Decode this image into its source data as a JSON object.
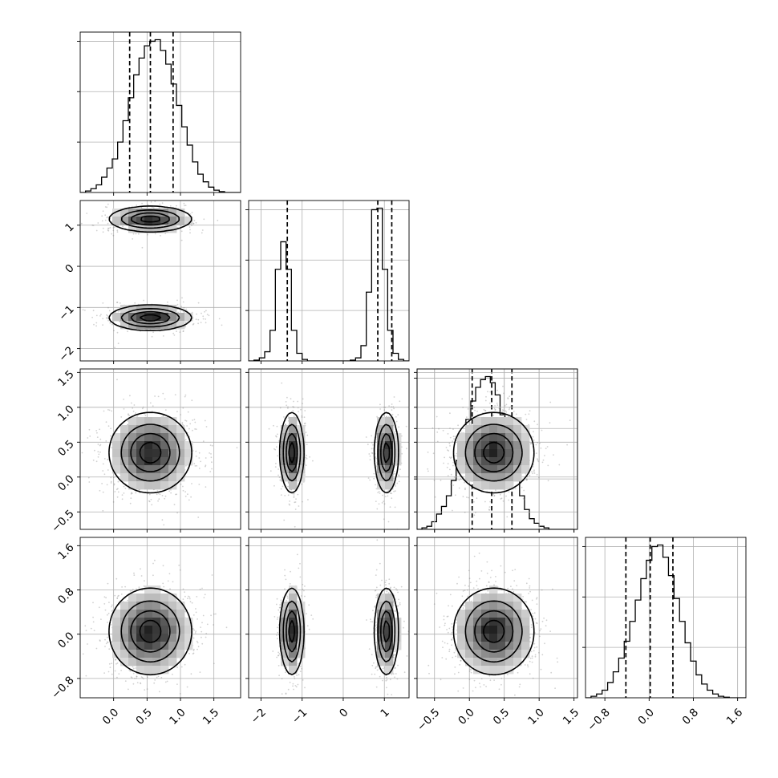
{
  "chart_data": {
    "type": "corner",
    "title": "",
    "parameters": [
      {
        "xlim": [
          -0.5,
          1.9
        ],
        "xticks": [
          0.0,
          0.5,
          1.0,
          1.5
        ],
        "xticklabels": [
          "0.0",
          "0.5",
          "1.0",
          "1.5"
        ],
        "hist": {
          "edges": [
            -0.5,
            -0.42,
            -0.34,
            -0.26,
            -0.18,
            -0.1,
            -0.02,
            0.06,
            0.14,
            0.22,
            0.3,
            0.38,
            0.46,
            0.54,
            0.62,
            0.7,
            0.78,
            0.86,
            0.94,
            1.02,
            1.1,
            1.18,
            1.26,
            1.34,
            1.42,
            1.5,
            1.58,
            1.66,
            1.74,
            1.82,
            1.9
          ],
          "counts": [
            0,
            0.01,
            0.025,
            0.05,
            0.1,
            0.16,
            0.22,
            0.33,
            0.47,
            0.62,
            0.77,
            0.88,
            0.96,
            0.99,
            1.0,
            0.93,
            0.84,
            0.71,
            0.57,
            0.43,
            0.31,
            0.2,
            0.12,
            0.07,
            0.035,
            0.015,
            0.006,
            0,
            0,
            0
          ]
        },
        "quantiles": [
          0.24,
          0.55,
          0.89
        ]
      },
      {
        "xlim": [
          -2.3,
          1.6
        ],
        "xticks": [
          -2,
          -1,
          0,
          1
        ],
        "xticklabels": [
          "−2",
          "−1",
          "0",
          "1"
        ],
        "yticks": [
          -2,
          -1,
          0,
          1
        ],
        "yticklabels": [
          "−2",
          "−1",
          "0",
          "1"
        ],
        "hist": {
          "edges": [
            -2.3,
            -2.17,
            -2.04,
            -1.91,
            -1.78,
            -1.65,
            -1.52,
            -1.39,
            -1.26,
            -1.13,
            -1.0,
            -0.87,
            -0.74,
            -0.61,
            -0.48,
            -0.35,
            -0.22,
            -0.09,
            0.04,
            0.17,
            0.3,
            0.43,
            0.56,
            0.69,
            0.82,
            0.95,
            1.08,
            1.21,
            1.34,
            1.47,
            1.6
          ],
          "counts": [
            0,
            0.005,
            0.02,
            0.06,
            0.2,
            0.6,
            0.78,
            0.6,
            0.2,
            0.05,
            0.01,
            0,
            0,
            0,
            0,
            0,
            0,
            0,
            0,
            0.005,
            0.02,
            0.1,
            0.45,
            0.99,
            1.0,
            0.6,
            0.2,
            0.05,
            0.01,
            0
          ]
        },
        "quantiles": [
          -1.36,
          0.84,
          1.18
        ]
      },
      {
        "xlim": [
          -0.75,
          1.55
        ],
        "xticks": [
          -0.5,
          0.0,
          0.5,
          1.0,
          1.5
        ],
        "xticklabels": [
          "−0.5",
          "0.0",
          "0.5",
          "1.0",
          "1.5"
        ],
        "yticks": [
          -0.5,
          0.0,
          0.5,
          1.0,
          1.5
        ],
        "yticklabels": [
          "−0.5",
          "0.0",
          "0.5",
          "1.0",
          "1.5"
        ],
        "hist": {
          "edges": [
            -0.75,
            -0.68,
            -0.61,
            -0.54,
            -0.47,
            -0.4,
            -0.33,
            -0.26,
            -0.19,
            -0.12,
            -0.05,
            0.02,
            0.09,
            0.16,
            0.23,
            0.3,
            0.37,
            0.44,
            0.51,
            0.58,
            0.65,
            0.72,
            0.79,
            0.86,
            0.93,
            1.0,
            1.07,
            1.14,
            1.21,
            1.28,
            1.35,
            1.42,
            1.49
          ],
          "counts": [
            0,
            0.01,
            0.02,
            0.05,
            0.1,
            0.15,
            0.22,
            0.32,
            0.45,
            0.58,
            0.72,
            0.84,
            0.93,
            0.98,
            1.0,
            0.96,
            0.88,
            0.75,
            0.6,
            0.46,
            0.33,
            0.22,
            0.13,
            0.07,
            0.04,
            0.02,
            0.01,
            0,
            0,
            0,
            0,
            0
          ]
        },
        "quantiles": [
          0.04,
          0.32,
          0.61
        ]
      },
      {
        "xlim": [
          -1.15,
          1.75
        ],
        "xticks": [
          -0.8,
          0.0,
          0.8,
          1.6
        ],
        "xticklabels": [
          "−0.8",
          "0.0",
          "0.8",
          "1.6"
        ],
        "yticks": [
          -0.8,
          0.0,
          0.8,
          1.6
        ],
        "yticklabels": [
          "−0.8",
          "0.0",
          "0.8",
          "1.6"
        ],
        "hist": {
          "edges": [
            -1.15,
            -1.05,
            -0.95,
            -0.85,
            -0.75,
            -0.65,
            -0.55,
            -0.45,
            -0.35,
            -0.25,
            -0.15,
            -0.05,
            0.05,
            0.15,
            0.25,
            0.35,
            0.45,
            0.55,
            0.65,
            0.75,
            0.85,
            0.95,
            1.05,
            1.15,
            1.25,
            1.35,
            1.45,
            1.55,
            1.65,
            1.75
          ],
          "counts": [
            0,
            0.01,
            0.025,
            0.05,
            0.1,
            0.17,
            0.26,
            0.37,
            0.5,
            0.64,
            0.78,
            0.9,
            0.99,
            1.0,
            0.92,
            0.8,
            0.65,
            0.5,
            0.36,
            0.24,
            0.15,
            0.09,
            0.05,
            0.025,
            0.01,
            0.004,
            0,
            0,
            0
          ]
        },
        "quantiles": [
          -0.42,
          0.02,
          0.43
        ]
      }
    ],
    "joint": [
      {
        "row": 1,
        "col": 0,
        "modes": [
          {
            "cx": 0.55,
            "cy": 1.15,
            "sx": 0.3,
            "sy": 0.15,
            "w": 0.5
          },
          {
            "cx": 0.55,
            "cy": -1.25,
            "sx": 0.3,
            "sy": 0.15,
            "w": 0.5
          }
        ]
      },
      {
        "row": 2,
        "col": 0,
        "modes": [
          {
            "cx": 0.55,
            "cy": 0.35,
            "sx": 0.3,
            "sy": 0.28,
            "w": 1.0
          }
        ]
      },
      {
        "row": 2,
        "col": 1,
        "modes": [
          {
            "cx": -1.25,
            "cy": 0.35,
            "sx": 0.14,
            "sy": 0.28,
            "w": 0.5
          },
          {
            "cx": 1.05,
            "cy": 0.35,
            "sx": 0.14,
            "sy": 0.28,
            "w": 0.5
          }
        ]
      },
      {
        "row": 2,
        "col": 2,
        "modes": []
      },
      {
        "row": 3,
        "col": 0,
        "modes": [
          {
            "cx": 0.55,
            "cy": 0.05,
            "sx": 0.3,
            "sy": 0.38,
            "w": 1.0
          }
        ]
      },
      {
        "row": 3,
        "col": 1,
        "modes": [
          {
            "cx": -1.25,
            "cy": 0.05,
            "sx": 0.14,
            "sy": 0.38,
            "w": 0.5
          },
          {
            "cx": 1.05,
            "cy": 0.05,
            "sx": 0.14,
            "sy": 0.38,
            "w": 0.5
          }
        ]
      },
      {
        "row": 3,
        "col": 2,
        "modes": [
          {
            "cx": 0.35,
            "cy": 0.05,
            "sx": 0.28,
            "sy": 0.38,
            "w": 1.0
          }
        ]
      }
    ],
    "contour_levels": [
      0.12,
      0.35,
      0.62,
      0.87
    ],
    "grid": true
  }
}
